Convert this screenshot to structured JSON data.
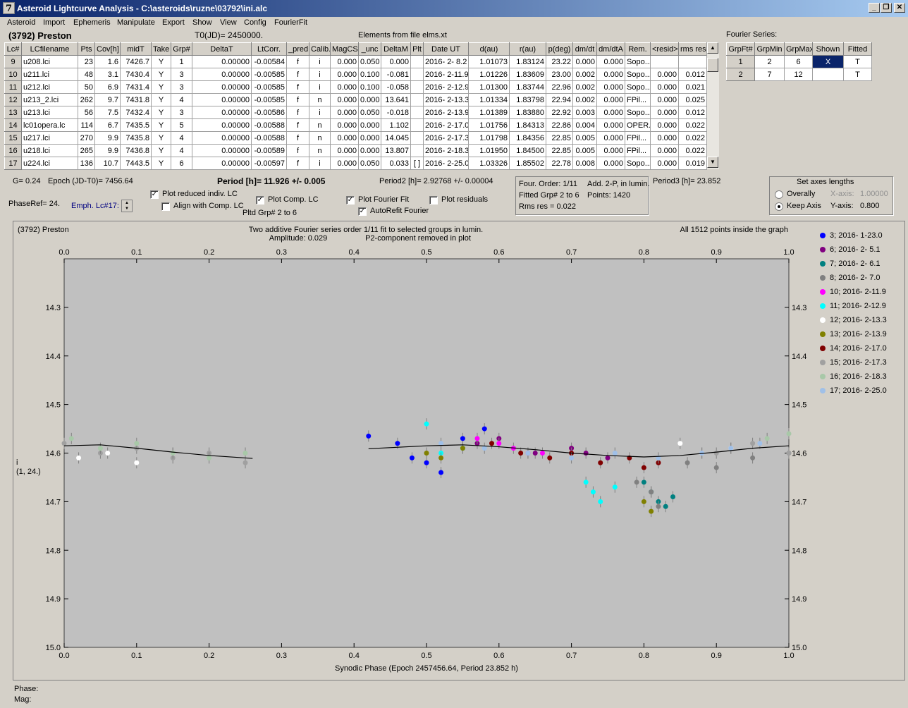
{
  "window": {
    "title": "Asteroid Lightcurve Analysis - C:\\asteroids\\ruzne\\03792\\ini.alc",
    "icon_char": "7",
    "min": "_",
    "max": "❐",
    "close": "✕"
  },
  "menu": [
    "Asteroid",
    "Import",
    "Ephemeris",
    "Manipulate",
    "Export",
    "Show",
    "View",
    "Config",
    "FourierFit"
  ],
  "header": {
    "asteroid": "(3792) Preston",
    "t0": "T0(JD)= 2450000.",
    "elements": "Elements from file elms.xt",
    "fourier_title": "Fourier Series:"
  },
  "lc_table": {
    "columns": [
      "Lc#",
      "LCfilename",
      "Pts",
      "Cov[h]",
      "midT",
      "Take",
      "Grp#",
      "DeltaT",
      "LtCorr.",
      "_pred.",
      "Calib.",
      "MagCS",
      "_unc",
      "DeltaM",
      "Plt",
      "Date UT",
      "d(au)",
      "r(au)",
      "p(deg)",
      "dm/dt",
      "dm/dtA",
      "Rem.",
      "<resid>",
      "rms res"
    ],
    "rows": [
      [
        "9",
        "u208.lci",
        "23",
        "1.6",
        "7426.7",
        "Y",
        "1",
        "0.00000",
        "-0.00584",
        "f",
        "i",
        "0.000",
        "0.050",
        "0.000",
        "",
        "2016- 2- 8.2",
        "1.01073",
        "1.83124",
        "23.22",
        "0.000",
        "0.000",
        "Sopo...",
        "",
        ""
      ],
      [
        "10",
        "u211.lci",
        "48",
        "3.1",
        "7430.4",
        "Y",
        "3",
        "0.00000",
        "-0.00585",
        "f",
        "i",
        "0.000",
        "0.100",
        "-0.081",
        "",
        "2016- 2-11.9",
        "1.01226",
        "1.83609",
        "23.00",
        "0.002",
        "0.000",
        "Sopo...",
        "0.000",
        "0.012"
      ],
      [
        "11",
        "u212.lci",
        "50",
        "6.9",
        "7431.4",
        "Y",
        "3",
        "0.00000",
        "-0.00585",
        "f",
        "i",
        "0.000",
        "0.100",
        "-0.058",
        "",
        "2016- 2-12.9",
        "1.01300",
        "1.83744",
        "22.96",
        "0.002",
        "0.000",
        "Sopo...",
        "0.000",
        "0.021"
      ],
      [
        "12",
        "u213_2.lci",
        "262",
        "9.7",
        "7431.8",
        "Y",
        "4",
        "0.00000",
        "-0.00585",
        "f",
        "n",
        "0.000",
        "0.000",
        "13.641",
        "",
        "2016- 2-13.3",
        "1.01334",
        "1.83798",
        "22.94",
        "0.002",
        "0.000",
        "FPil...",
        "0.000",
        "0.025"
      ],
      [
        "13",
        "u213.lci",
        "56",
        "7.5",
        "7432.4",
        "Y",
        "3",
        "0.00000",
        "-0.00586",
        "f",
        "i",
        "0.000",
        "0.050",
        "-0.018",
        "",
        "2016- 2-13.9",
        "1.01389",
        "1.83880",
        "22.92",
        "0.003",
        "0.000",
        "Sopo...",
        "0.000",
        "0.012"
      ],
      [
        "14",
        "lc01opera.lc",
        "114",
        "6.7",
        "7435.5",
        "Y",
        "5",
        "0.00000",
        "-0.00588",
        "f",
        "n",
        "0.000",
        "0.000",
        "1.102",
        "",
        "2016- 2-17.0",
        "1.01756",
        "1.84313",
        "22.86",
        "0.004",
        "0.000",
        "OPER...",
        "0.000",
        "0.022"
      ],
      [
        "15",
        "u217.lci",
        "270",
        "9.9",
        "7435.8",
        "Y",
        "4",
        "0.00000",
        "-0.00588",
        "f",
        "n",
        "0.000",
        "0.000",
        "14.045",
        "",
        "2016- 2-17.3",
        "1.01798",
        "1.84356",
        "22.85",
        "0.005",
        "0.000",
        "FPil...",
        "0.000",
        "0.022"
      ],
      [
        "16",
        "u218.lci",
        "265",
        "9.9",
        "7436.8",
        "Y",
        "4",
        "0.00000",
        "-0.00589",
        "f",
        "n",
        "0.000",
        "0.000",
        "13.807",
        "",
        "2016- 2-18.3",
        "1.01950",
        "1.84500",
        "22.85",
        "0.005",
        "0.000",
        "FPil...",
        "0.000",
        "0.022"
      ],
      [
        "17",
        "u224.lci",
        "136",
        "10.7",
        "7443.5",
        "Y",
        "6",
        "0.00000",
        "-0.00597",
        "f",
        "i",
        "0.000",
        "0.050",
        "0.033",
        "[ ]",
        "2016- 2-25.0",
        "1.03326",
        "1.85502",
        "22.78",
        "0.008",
        "0.000",
        "Sopo...",
        "0.000",
        "0.019"
      ]
    ]
  },
  "fourier_table": {
    "columns": [
      "GrpFt#",
      "GrpMin",
      "GrpMax",
      "Shown",
      "Fitted"
    ],
    "rows": [
      [
        "1",
        "2",
        "6",
        "X",
        "T"
      ],
      [
        "2",
        "7",
        "12",
        "",
        "T"
      ]
    ]
  },
  "controls": {
    "g": "G= 0.24",
    "epoch": "Epoch (JD-T0)= 7456.64",
    "period": "Period [h]= 11.926 +/- 0.005",
    "period2": "Period2 [h]= 2.92768 +/- 0.00004",
    "period3": "Period3 [h]= 23.852",
    "phaseref": "PhaseRef= 24.",
    "emph": "Emph. Lc#17:",
    "plot_reduced": "Plot reduced indiv. LC",
    "align": "Align with Comp. LC",
    "plot_comp": "Plot Comp. LC",
    "pltd_grp": "Pltd Grp#  2   to   6",
    "plot_fourier": "Plot Fourier Fit",
    "autorefit": "AutoRefit Fourier",
    "plot_residuals": "Plot residuals",
    "fit_info": {
      "order": "Four. Order:  1/11",
      "add": "Add. 2-P, in lumin.",
      "fitted": "Fitted Grp# 2 to 6",
      "points": "Points: 1420",
      "rms": "Rms res      = 0.022"
    },
    "axes": {
      "title": "Set axes lengths",
      "overally": "Overally",
      "keep": "Keep Axis",
      "xlabel": "X-axis:",
      "xval": "1.00000",
      "ylabel": "Y-axis:",
      "yval": "0.800"
    }
  },
  "plot": {
    "name": "(3792) Preston",
    "subtitle1": "Two additive Fourier series order 1/11 fit to selected groups in lumin.",
    "subtitle2": "Amplitude: 0.029",
    "subtitle3": "P2-component removed in plot",
    "points_note": "All 1512 points inside the graph",
    "ylabel1": "i",
    "ylabel2": "(1, 24.)",
    "xlabel": "Synodic Phase (Epoch 2457456.64, Period 23.852 h)",
    "phase": "Phase:",
    "mag": "Mag:"
  },
  "chart_data": {
    "type": "scatter",
    "xlim": [
      0,
      1
    ],
    "ylim": [
      15.0,
      14.2
    ],
    "x_ticks": [
      "0.0",
      "0.1",
      "0.2",
      "0.3",
      "0.4",
      "0.5",
      "0.6",
      "0.7",
      "0.8",
      "0.9",
      "1.0"
    ],
    "y_ticks": [
      "14.3",
      "14.4",
      "14.5",
      "14.6",
      "14.7",
      "14.8",
      "14.9",
      "15.0"
    ],
    "legend_position": "right",
    "series": [
      {
        "name": "3; 2016- 1-23.0",
        "color": "#0000ff",
        "x": [
          0.42,
          0.46,
          0.48,
          0.5,
          0.52,
          0.55,
          0.58
        ],
        "y": [
          14.565,
          14.58,
          14.61,
          14.62,
          14.64,
          14.57,
          14.55
        ]
      },
      {
        "name": "6; 2016- 2- 5.1",
        "color": "#800080",
        "x": [
          0.57,
          0.6,
          0.65,
          0.7,
          0.72,
          0.75
        ],
        "y": [
          14.58,
          14.57,
          14.6,
          14.59,
          14.6,
          14.61
        ]
      },
      {
        "name": "7; 2016- 2- 6.1",
        "color": "#008080",
        "x": [
          0.8,
          0.81,
          0.82,
          0.83,
          0.84
        ],
        "y": [
          14.66,
          14.68,
          14.7,
          14.71,
          14.69
        ]
      },
      {
        "name": "8; 2016- 2- 7.0",
        "color": "#808080",
        "x": [
          0.79,
          0.81,
          0.82,
          0.86,
          0.9,
          0.95,
          1.0
        ],
        "y": [
          14.66,
          14.68,
          14.71,
          14.62,
          14.63,
          14.61,
          14.6
        ]
      },
      {
        "name": "10; 2016- 2-11.9",
        "color": "#ff00ff",
        "x": [
          0.57,
          0.6,
          0.62,
          0.64,
          0.66
        ],
        "y": [
          14.57,
          14.58,
          14.59,
          14.6,
          14.6
        ]
      },
      {
        "name": "11; 2016- 2-12.9",
        "color": "#00ffff",
        "x": [
          0.5,
          0.52,
          0.55,
          0.72,
          0.73,
          0.74,
          0.76
        ],
        "y": [
          14.54,
          14.6,
          14.59,
          14.66,
          14.68,
          14.7,
          14.67
        ]
      },
      {
        "name": "12; 2016- 2-13.3",
        "color": "#ffffff",
        "x": [
          0.02,
          0.06,
          0.1,
          0.15,
          0.85,
          0.88,
          0.92
        ],
        "y": [
          14.61,
          14.6,
          14.62,
          14.6,
          14.58,
          14.6,
          14.59
        ]
      },
      {
        "name": "13; 2016- 2-13.9",
        "color": "#808000",
        "x": [
          0.5,
          0.52,
          0.55,
          0.8,
          0.81
        ],
        "y": [
          14.6,
          14.61,
          14.59,
          14.7,
          14.72
        ]
      },
      {
        "name": "14; 2016- 2-17.0",
        "color": "#800000",
        "x": [
          0.59,
          0.63,
          0.67,
          0.7,
          0.74,
          0.78,
          0.8,
          0.82
        ],
        "y": [
          14.58,
          14.6,
          14.61,
          14.6,
          14.62,
          14.61,
          14.63,
          14.62
        ]
      },
      {
        "name": "15; 2016- 2-17.3",
        "color": "#a0a0a0",
        "x": [
          0.0,
          0.05,
          0.1,
          0.15,
          0.2,
          0.25,
          0.9,
          0.95,
          1.0
        ],
        "y": [
          14.58,
          14.6,
          14.59,
          14.61,
          14.6,
          14.62,
          14.6,
          14.58,
          14.6
        ]
      },
      {
        "name": "16; 2016- 2-18.3",
        "color": "#a8c8a8",
        "x": [
          0.01,
          0.05,
          0.1,
          0.15,
          0.2,
          0.25,
          0.97,
          1.0
        ],
        "y": [
          14.57,
          14.59,
          14.58,
          14.6,
          14.61,
          14.6,
          14.57,
          14.56
        ]
      },
      {
        "name": "17; 2016- 2-25.0",
        "color": "#a0c0e8",
        "x": [
          0.52,
          0.58,
          0.64,
          0.7,
          0.76,
          0.82,
          0.88,
          0.92,
          0.96
        ],
        "y": [
          14.58,
          14.59,
          14.6,
          14.61,
          14.6,
          14.61,
          14.6,
          14.59,
          14.58
        ]
      }
    ],
    "fit_curve": {
      "x": [
        0.0,
        0.05,
        0.1,
        0.15,
        0.2,
        0.26,
        0.42,
        0.5,
        0.55,
        0.6,
        0.65,
        0.7,
        0.75,
        0.8,
        0.85,
        0.9,
        0.95,
        1.0
      ],
      "y": [
        14.585,
        14.583,
        14.59,
        14.598,
        14.605,
        14.611,
        14.591,
        14.585,
        14.583,
        14.587,
        14.593,
        14.6,
        14.605,
        14.608,
        14.605,
        14.598,
        14.59,
        14.585
      ]
    }
  }
}
